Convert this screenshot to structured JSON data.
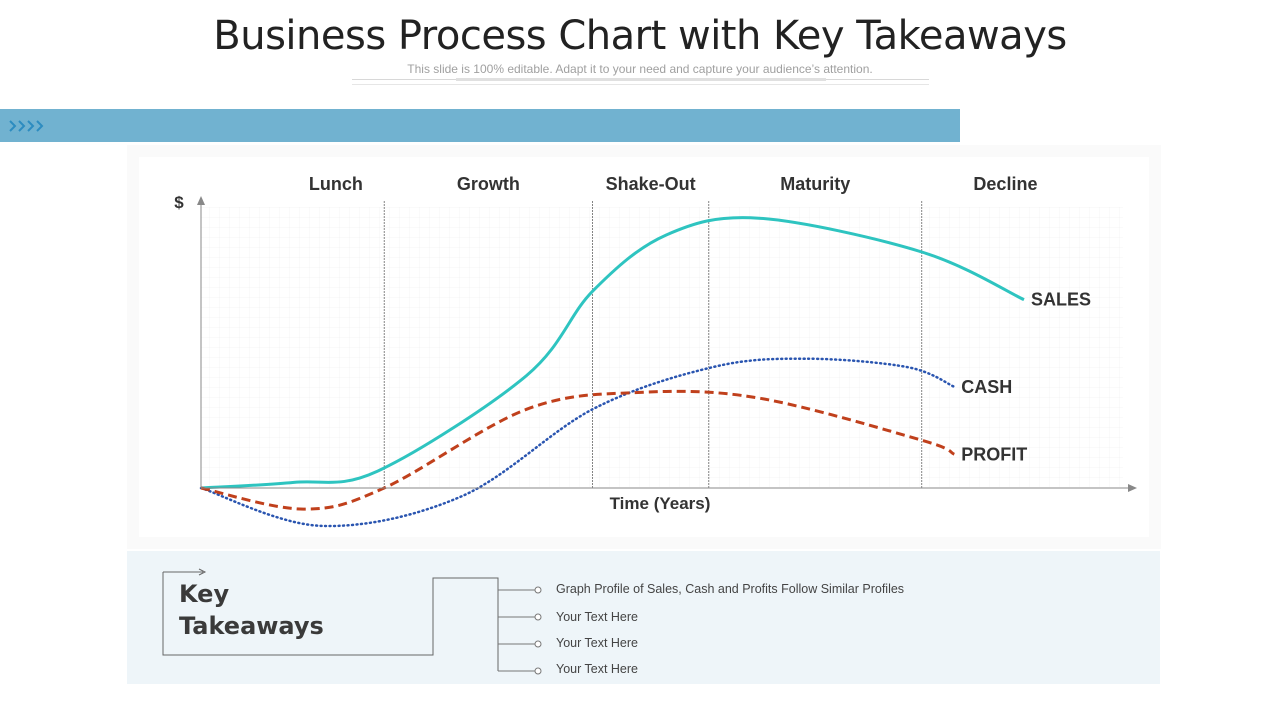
{
  "header": {
    "title": "Business Process Chart with Key Takeaways",
    "subtitle": "This slide is 100% editable. Adapt it to your need and capture your audience’s attention."
  },
  "colors": {
    "banner": "#71b2d0",
    "sales": "#2ec4c0",
    "cash": "#2a55b0",
    "profit": "#c0401c",
    "panel": "#eef5f9"
  },
  "chart_data": {
    "type": "line",
    "ylabel": "$",
    "xlabel": "Time (Years)",
    "phases": [
      "Lunch",
      "Growth",
      "Shake-Out",
      "Maturity",
      "Decline"
    ],
    "phase_boundaries": [
      1.97,
      4.21,
      5.46,
      7.75
    ],
    "xlim": [
      0,
      10
    ],
    "ylim": [
      -1.5,
      10
    ],
    "grid": true,
    "series": [
      {
        "name": "SALES",
        "style": "solid",
        "x": [
          0,
          1,
          1.9,
          3.5,
          4.21,
          5,
          6,
          7.75,
          8.85
        ],
        "y": [
          0,
          0.2,
          0.6,
          4.0,
          7.0,
          9.0,
          9.6,
          8.4,
          6.7
        ]
      },
      {
        "name": "CASH",
        "style": "dotted",
        "x": [
          0,
          1.3,
          2.8,
          4.21,
          5.5,
          6.5,
          7.6,
          8.1
        ],
        "y": [
          0,
          -1.35,
          -0.3,
          2.8,
          4.3,
          4.6,
          4.3,
          3.6
        ]
      },
      {
        "name": "PROFIT",
        "style": "dashed",
        "x": [
          0,
          1.1,
          1.97,
          3.5,
          4.7,
          6,
          7.75,
          8.1
        ],
        "y": [
          0,
          -0.75,
          0,
          2.8,
          3.4,
          3.2,
          1.7,
          1.2
        ]
      }
    ]
  },
  "takeaways": {
    "title_line1": "Key",
    "title_line2": "Takeaways",
    "items": [
      "Graph Profile of Sales, Cash and Profits Follow Similar Profiles",
      "Your Text Here",
      "Your Text Here",
      "Your Text Here"
    ]
  }
}
